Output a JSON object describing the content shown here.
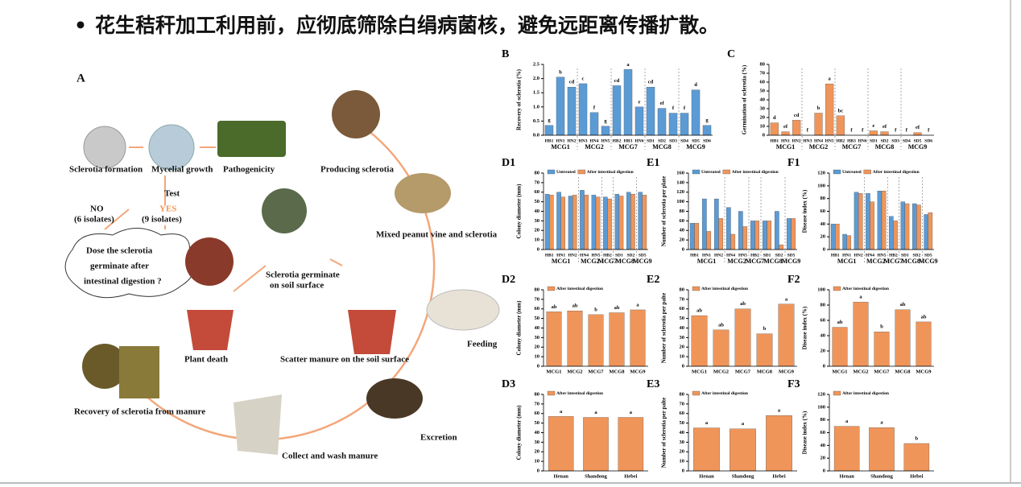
{
  "title": "花生秸秆加工利用前，应彻底筛除白绢病菌核，避免远距离传播扩散。",
  "panel_a": {
    "label": "A",
    "sclerotia_formation": "Sclerotia formation",
    "mycelial_growth": "Mycelial growth",
    "pathogenicity": "Pathogenicity",
    "producing_sclerotia": "Producing sclerotia",
    "test": "Test",
    "yes": "YES",
    "yes_count": "(9 isolates)",
    "no": "NO",
    "no_count": "(6 isolates)",
    "question": [
      "Dose the sclerotia",
      "germinate after",
      "intestinal digestion ?"
    ],
    "mixed": "Mixed peanut vine and sclerotia",
    "germinate": [
      "Sclerotia germinate",
      "on soil surface"
    ],
    "plant_death": "Plant death",
    "scatter": "Scatter manure on the soil surface",
    "feeding": "Feeding",
    "recovery": "Recovery of sclerotia from manure",
    "excretion": "Excretion",
    "collect": "Collect and wash manure"
  },
  "charts": [
    {
      "type": "bar",
      "label": "B",
      "ylabel": "Recovery of sclerotia (%)",
      "groups": [
        {
          "name": "MCG1",
          "categories": [
            "HB1",
            "HN1",
            "HN2"
          ]
        },
        {
          "name": "MCG2",
          "categories": [
            "HN3",
            "HN4",
            "HN5"
          ]
        },
        {
          "name": "MCG7",
          "categories": [
            "HB2",
            "HB3",
            "HN6"
          ]
        },
        {
          "name": "MCG8",
          "categories": [
            "SD1",
            "SD2",
            "SD3"
          ]
        },
        {
          "name": "MCG9",
          "categories": [
            "SD4",
            "SD5",
            "SD6"
          ]
        }
      ],
      "series": [
        {
          "color": "#5b9bd5",
          "values": [
            0.35,
            2.05,
            1.7,
            1.82,
            0.8,
            0.32,
            1.75,
            2.32,
            1.0,
            1.7,
            0.95,
            0.78,
            0.78,
            1.6,
            0.35
          ],
          "letters": [
            "g",
            "b",
            "cd",
            "c",
            "f",
            "g",
            "cd",
            "a",
            "e",
            "cd",
            "ef",
            "f",
            "f",
            "d",
            "g"
          ]
        }
      ],
      "ylim": [
        0,
        2.5
      ],
      "yticks": [
        {
          "value": 0,
          "label": "0.0"
        },
        0.5,
        {
          "value": 1,
          "label": "1.0"
        },
        1.5,
        {
          "value": 2,
          "label": "2.0"
        },
        2.5
      ]
    },
    {
      "type": "bar",
      "label": "C",
      "ylabel": "Germination of sclerotia (%)",
      "groups": [
        {
          "name": "MCG1",
          "categories": [
            "HB1",
            "HN1",
            "HN2"
          ]
        },
        {
          "name": "MCG2",
          "categories": [
            "HN3",
            "HN4",
            "HN5"
          ]
        },
        {
          "name": "MCG7",
          "categories": [
            "HB2",
            "HB3",
            "HN6"
          ]
        },
        {
          "name": "MCG8",
          "categories": [
            "SD1",
            "SD2",
            "SD3"
          ]
        },
        {
          "name": "MCG9",
          "categories": [
            "SD4",
            "SD5",
            "SD6"
          ]
        }
      ],
      "series": [
        {
          "color": "#f0955a",
          "values": [
            14,
            4,
            17,
            0,
            25,
            58,
            22,
            0,
            0,
            5,
            4,
            0,
            0,
            3,
            0
          ],
          "letters": [
            "d",
            "ef",
            "cd",
            "f",
            "b",
            "a",
            "bc",
            "f",
            "f",
            "e",
            "ef",
            "f",
            "f",
            "ef",
            "f"
          ]
        }
      ],
      "ylim": [
        0,
        80
      ],
      "yticks": [
        0,
        10,
        20,
        30,
        40,
        50,
        60,
        70,
        80
      ]
    },
    {
      "type": "bar",
      "label": "D1",
      "ylabel": "Colony diameter (mm)",
      "groups": [
        {
          "name": "MCG1",
          "categories": [
            "HB1",
            "HN1",
            "HN2"
          ]
        },
        {
          "name": "MCG2",
          "categories": [
            "HN4",
            "HN5"
          ]
        },
        {
          "name": "MCG7",
          "categories": [
            "HB2"
          ]
        },
        {
          "name": "MCG8",
          "categories": [
            "SD1",
            "SD2"
          ]
        },
        {
          "name": "MCG9",
          "categories": [
            "SD5"
          ]
        }
      ],
      "series": [
        {
          "name": "Untreated",
          "color": "#5b9bd5",
          "values": [
            58,
            60,
            56,
            62,
            57,
            55,
            58,
            60,
            60
          ]
        },
        {
          "name": "After intestinal digestion",
          "color": "#f0955a",
          "values": [
            57,
            55,
            57,
            57,
            55,
            53,
            56,
            58,
            57
          ]
        }
      ],
      "ylim": [
        0,
        80
      ],
      "yticks": [
        0,
        10,
        20,
        30,
        40,
        50,
        60,
        70,
        80
      ]
    },
    {
      "type": "bar",
      "label": "E1",
      "ylabel": "Number of sclerotia per plate",
      "groups": [
        {
          "name": "MCG1",
          "categories": [
            "HB1",
            "HN1",
            "HN2"
          ]
        },
        {
          "name": "MCG2",
          "categories": [
            "HN4",
            "HN5"
          ]
        },
        {
          "name": "MCG7",
          "categories": [
            "HB2"
          ]
        },
        {
          "name": "MCG8",
          "categories": [
            "SD1",
            "SD2"
          ]
        },
        {
          "name": "MCG9",
          "categories": [
            "SD5"
          ]
        }
      ],
      "series": [
        {
          "name": "Untreated",
          "color": "#5b9bd5",
          "values": [
            55,
            106,
            106,
            88,
            80,
            60,
            60,
            80,
            65
          ]
        },
        {
          "name": "After intestinal digestion",
          "color": "#f0955a",
          "values": [
            55,
            38,
            65,
            32,
            48,
            60,
            60,
            10,
            65
          ]
        }
      ],
      "ylim": [
        0,
        160
      ],
      "yticks": [
        0,
        20,
        40,
        60,
        80,
        100,
        120,
        140,
        160
      ]
    },
    {
      "type": "bar",
      "label": "F1",
      "ylabel": "Disease index (%)",
      "groups": [
        {
          "name": "MCG1",
          "categories": [
            "HB1",
            "HN1",
            "HN2"
          ]
        },
        {
          "name": "MCG2",
          "categories": [
            "HN4",
            "HN5"
          ]
        },
        {
          "name": "MCG7",
          "categories": [
            "HB2"
          ]
        },
        {
          "name": "MCG8",
          "categories": [
            "SD1",
            "SD2"
          ]
        },
        {
          "name": "MCG9",
          "categories": [
            "SD5"
          ]
        }
      ],
      "series": [
        {
          "name": "Untreated",
          "color": "#5b9bd5",
          "values": [
            40,
            24,
            90,
            88,
            92,
            52,
            75,
            72,
            55
          ]
        },
        {
          "name": "After intestinal digestion",
          "color": "#f0955a",
          "values": [
            40,
            22,
            88,
            75,
            92,
            45,
            72,
            70,
            58
          ]
        }
      ],
      "ylim": [
        0,
        120
      ],
      "yticks": [
        0,
        20,
        40,
        60,
        80,
        100,
        120
      ]
    },
    {
      "type": "bar",
      "label": "D2",
      "ylabel": "Colony diameter (mm)",
      "groups": [
        {
          "categories": [
            "MCG1",
            "MCG2",
            "MCG7",
            "MCG8",
            "MCG9"
          ]
        }
      ],
      "series": [
        {
          "name": "After intestinal digestion",
          "color": "#f0955a",
          "values": [
            57,
            58,
            54,
            56,
            59
          ],
          "letters": [
            "ab",
            "ab",
            "b",
            "ab",
            "a"
          ]
        }
      ],
      "ylim": [
        0,
        80
      ],
      "yticks": [
        0,
        10,
        20,
        30,
        40,
        50,
        60,
        70,
        80
      ]
    },
    {
      "type": "bar",
      "label": "E2",
      "ylabel": "Number of sclerotia per palte",
      "groups": [
        {
          "categories": [
            "MCG1",
            "MCG2",
            "MCG7",
            "MCG8",
            "MCG9"
          ]
        }
      ],
      "series": [
        {
          "name": "After intestinal digestion",
          "color": "#f0955a",
          "values": [
            53,
            38,
            60,
            34,
            65
          ],
          "letters": [
            "ab",
            "ab",
            "ab",
            "b",
            "a"
          ]
        }
      ],
      "ylim": [
        0,
        80
      ],
      "yticks": [
        0,
        10,
        20,
        30,
        40,
        50,
        60,
        70,
        80
      ]
    },
    {
      "type": "bar",
      "label": "F2",
      "ylabel": "Disease index (%)",
      "groups": [
        {
          "categories": [
            "MCG1",
            "MCG2",
            "MCG7",
            "MCG8",
            "MCG9"
          ]
        }
      ],
      "series": [
        {
          "name": "After intestinal digestion",
          "color": "#f0955a",
          "values": [
            51,
            84,
            45,
            74,
            58
          ],
          "letters": [
            "ab",
            "a",
            "b",
            "ab",
            "ab"
          ]
        }
      ],
      "ylim": [
        0,
        100
      ],
      "yticks": [
        0,
        20,
        40,
        60,
        80,
        100
      ]
    },
    {
      "type": "bar",
      "label": "D3",
      "ylabel": "Colony diameter (mm)",
      "groups": [
        {
          "categories": [
            "Henan",
            "Shandong",
            "Hebei"
          ]
        }
      ],
      "series": [
        {
          "name": "After intestinal digestion",
          "color": "#f0955a",
          "values": [
            57,
            56,
            56
          ],
          "letters": [
            "a",
            "a",
            "a"
          ]
        }
      ],
      "ylim": [
        0,
        80
      ],
      "yticks": [
        0,
        10,
        20,
        30,
        40,
        50,
        60,
        70,
        80
      ]
    },
    {
      "type": "bar",
      "label": "E3",
      "ylabel": "Number of sclerotia per palte",
      "groups": [
        {
          "categories": [
            "Henan",
            "Shandong",
            "Hebei"
          ]
        }
      ],
      "series": [
        {
          "name": "After intestinal digestion",
          "color": "#f0955a",
          "values": [
            45,
            44,
            58
          ],
          "letters": [
            "a",
            "a",
            "a"
          ]
        }
      ],
      "ylim": [
        0,
        80
      ],
      "yticks": [
        0,
        10,
        20,
        30,
        40,
        50,
        60,
        70,
        80
      ]
    },
    {
      "type": "bar",
      "label": "F3",
      "ylabel": "Disease index (%)",
      "groups": [
        {
          "categories": [
            "Henan",
            "Shandong",
            "Hebei"
          ]
        }
      ],
      "series": [
        {
          "name": "After intestinal digestion",
          "color": "#f0955a",
          "values": [
            70,
            68,
            43
          ],
          "letters": [
            "a",
            "a",
            "b"
          ]
        }
      ],
      "ylim": [
        0,
        120
      ],
      "yticks": [
        0,
        20,
        40,
        60,
        80,
        100,
        120
      ]
    }
  ]
}
